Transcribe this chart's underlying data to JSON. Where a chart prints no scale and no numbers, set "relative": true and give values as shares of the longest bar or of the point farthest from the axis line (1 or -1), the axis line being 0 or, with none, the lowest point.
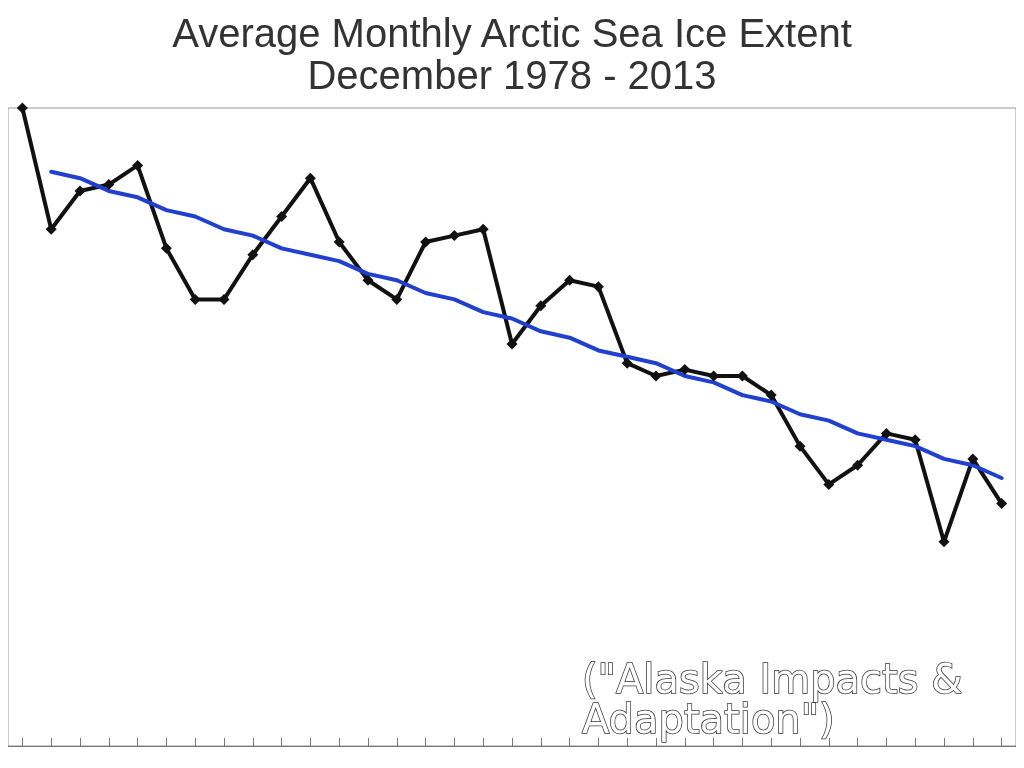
{
  "chart_data": {
    "type": "line",
    "title": "Average Monthly Arctic Sea Ice Extent",
    "subtitle": "December 1978 - 2013",
    "relative": true,
    "marker": "diamond",
    "grid": false,
    "categories": [
      null,
      null,
      null,
      null,
      null,
      null,
      null,
      null,
      null,
      null,
      null,
      null,
      null,
      null,
      null,
      null,
      null,
      null,
      null,
      null,
      null,
      null,
      null,
      null,
      null,
      null,
      null,
      null,
      null,
      null,
      null,
      null,
      null,
      null,
      null
    ],
    "series": [
      {
        "color": "#111111",
        "values": [
          1.0,
          0.81,
          0.87,
          0.88,
          0.91,
          0.78,
          0.7,
          0.7,
          0.77,
          0.83,
          0.89,
          0.79,
          0.73,
          0.7,
          0.79,
          0.8,
          0.81,
          0.63,
          0.69,
          0.73,
          0.72,
          0.6,
          0.58,
          0.59,
          0.58,
          0.58,
          0.55,
          0.47,
          0.41,
          0.44,
          0.49,
          0.48,
          0.32,
          0.45,
          0.38
        ]
      },
      {
        "type": "line",
        "marker": "none",
        "color": "#2040d0",
        "values": [
          null,
          0.9,
          0.89,
          0.87,
          0.86,
          0.84,
          0.83,
          0.81,
          0.8,
          0.78,
          0.77,
          0.76,
          0.74,
          0.73,
          0.71,
          0.7,
          0.68,
          0.67,
          0.65,
          0.64,
          0.62,
          0.61,
          0.6,
          0.58,
          0.57,
          0.55,
          0.54,
          0.52,
          0.51,
          0.49,
          0.48,
          0.47,
          0.45,
          0.44,
          0.42
        ]
      }
    ],
    "annotations": [
      "(\"Alaska Impacts & Adaptation\")"
    ]
  }
}
